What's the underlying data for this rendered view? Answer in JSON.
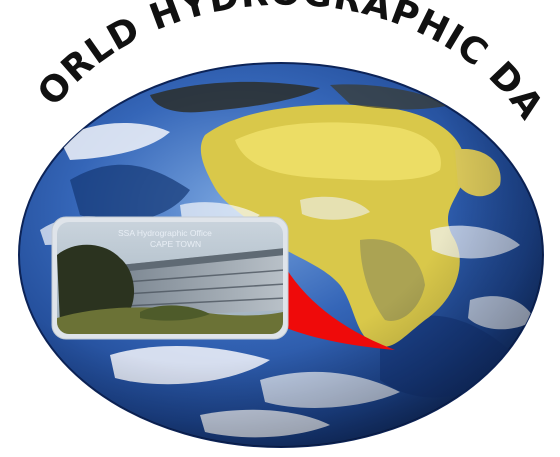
{
  "title": "WORLD HYDROGRAPHIC DAY",
  "inset_photo": {
    "caption_line1": "SSA Hydrographic Office",
    "caption_line2": "CAPE TOWN"
  },
  "colors": {
    "background": "#ffffff",
    "ocean_deep": "#1a3f86",
    "ocean_mid": "#2f62b5",
    "ocean_light": "#6d9ad9",
    "desert": "#e2d34a",
    "cloud": "#f4f6fb",
    "pointer_red": "#ef0a0a",
    "title_text": "#111111",
    "photo_frame": "#dfe4ea"
  },
  "icons": {
    "globe": "globe-icon",
    "building_photo": "building-photo"
  }
}
